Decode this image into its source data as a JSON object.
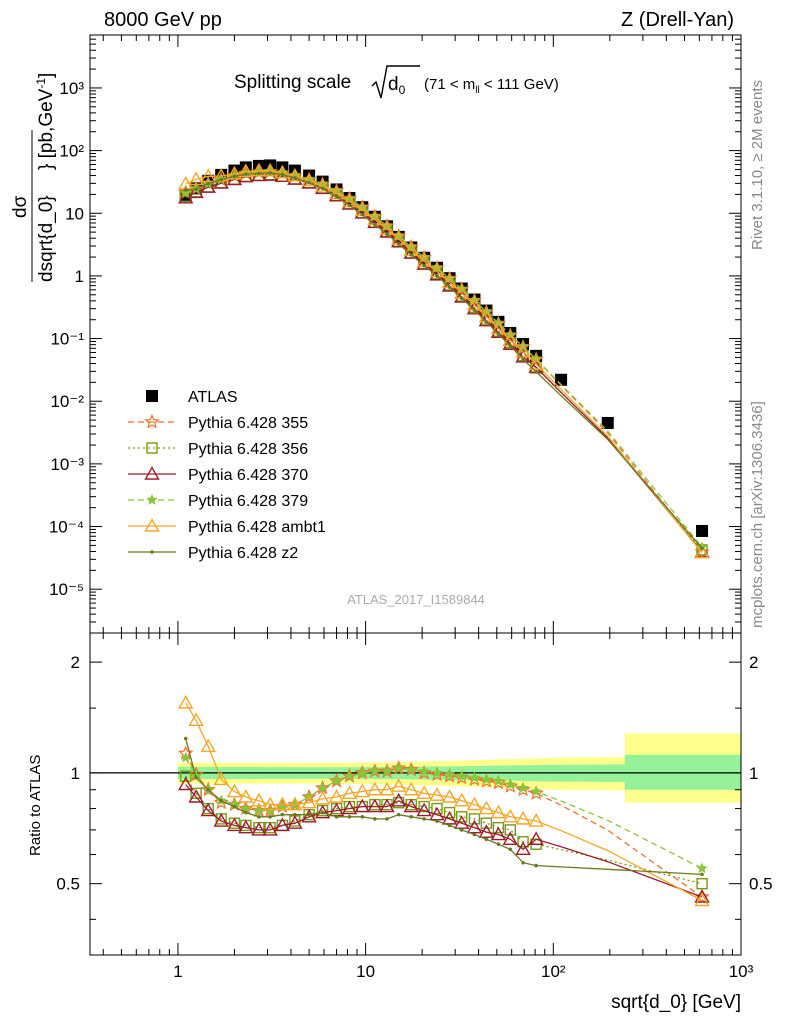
{
  "header": {
    "left": "8000 GeV pp",
    "right": "Z (Drell-Yan)"
  },
  "side_text": {
    "rivet": "Rivet 3.1.10, ≥ 2M events",
    "mcplots": "mcplots.cern.ch [arXiv:1306.3436]"
  },
  "chart_data": {
    "type": "scatter",
    "title": "Splitting scale √d₀ (71 < m_ll < 111 GeV)",
    "title_main": "Splitting scale",
    "title_sub": "(71 < m",
    "title_sub2": " < 111 GeV)",
    "analysis_label": "ATLAS_2017_I1589844",
    "xlabel": "sqrt{d_0} [GeV]",
    "ylabel": "dσ / dsqrt{d_0} [pb,GeV⁻¹]",
    "ratio_ylabel": "Ratio to ATLAS",
    "xscale": "log",
    "yscale": "log",
    "xlim": [
      0.34,
      1000
    ],
    "ylim": [
      2e-06,
      7000
    ],
    "ratio_ylim": [
      0.32,
      2.4
    ],
    "legend_position": "bottom-left",
    "x": [
      1.1,
      1.25,
      1.45,
      1.7,
      2.0,
      2.3,
      2.7,
      3.1,
      3.6,
      4.2,
      5.0,
      5.9,
      7.0,
      8.2,
      9.6,
      11.2,
      13.0,
      15.0,
      17.5,
      20.5,
      24.0,
      28.0,
      32.5,
      38.0,
      44.0,
      51.0,
      59.0,
      69.0,
      81.0,
      110.0,
      195.0,
      620.0
    ],
    "series": [
      {
        "name": "ATLAS",
        "color": "#000000",
        "marker": "filled-square",
        "line": "none",
        "values": [
          19,
          25,
          33,
          41,
          48,
          54,
          57,
          58,
          54,
          48,
          40,
          32,
          24,
          17.5,
          12.5,
          8.8,
          6.2,
          4.2,
          2.85,
          1.95,
          1.35,
          0.92,
          0.63,
          0.42,
          0.28,
          0.185,
          0.123,
          0.082,
          0.053,
          0.022,
          0.0045,
          8.5e-05
        ],
        "band_inner": {
          "x": [
            1.0,
            1.6,
            3.0,
            7.0,
            15.0,
            30.0,
            60.0,
            100.0,
            240.0,
            240.0,
            1000.0
          ],
          "lo": [
            0.962,
            0.962,
            0.963,
            0.964,
            0.962,
            0.957,
            0.952,
            0.947,
            0.945,
            0.9,
            0.9
          ],
          "hi": [
            1.038,
            1.038,
            1.037,
            1.036,
            1.038,
            1.043,
            1.048,
            1.053,
            1.055,
            1.12,
            1.12
          ]
        },
        "band_outer": {
          "x": [
            1.0,
            1.6,
            3.0,
            7.0,
            15.0,
            30.0,
            60.0,
            100.0,
            240.0,
            240.0,
            1000.0
          ],
          "lo": [
            0.935,
            0.935,
            0.935,
            0.935,
            0.93,
            0.92,
            0.91,
            0.9,
            0.895,
            0.83,
            0.83
          ],
          "hi": [
            1.065,
            1.065,
            1.065,
            1.065,
            1.07,
            1.08,
            1.09,
            1.1,
            1.105,
            1.28,
            1.28
          ]
        }
      },
      {
        "name": "Pythia 6.428 355",
        "color": "#f06f2a",
        "marker": "open-star",
        "line": "dashed",
        "ratio": [
          1.13,
          0.99,
          0.9,
          0.83,
          0.82,
          0.8,
          0.79,
          0.79,
          0.81,
          0.82,
          0.86,
          0.91,
          0.95,
          0.98,
          1.0,
          1.01,
          1.01,
          1.03,
          1.02,
          1.0,
          0.99,
          0.98,
          0.97,
          0.96,
          0.95,
          0.94,
          0.92,
          0.9,
          0.88,
          null,
          null,
          0.46
        ]
      },
      {
        "name": "Pythia 6.428 356",
        "color": "#7a9a10",
        "marker": "open-square",
        "line": "dotted",
        "ratio": [
          0.98,
          0.88,
          0.8,
          0.75,
          0.73,
          0.72,
          0.71,
          0.71,
          0.72,
          0.74,
          0.77,
          0.79,
          0.8,
          0.81,
          0.81,
          0.82,
          0.82,
          0.83,
          0.82,
          0.81,
          0.8,
          0.78,
          0.76,
          0.75,
          0.73,
          0.71,
          0.7,
          0.65,
          0.64,
          null,
          null,
          0.5
        ]
      },
      {
        "name": "Pythia 6.428 370",
        "color": "#9b1c2b",
        "marker": "open-triangle",
        "line": "solid",
        "ratio": [
          0.93,
          0.86,
          0.79,
          0.74,
          0.72,
          0.71,
          0.7,
          0.7,
          0.72,
          0.73,
          0.76,
          0.78,
          0.79,
          0.8,
          0.81,
          0.81,
          0.81,
          0.84,
          0.81,
          0.79,
          0.77,
          0.75,
          0.73,
          0.71,
          0.69,
          0.68,
          0.66,
          0.62,
          0.66,
          null,
          null,
          0.46
        ]
      },
      {
        "name": "Pythia 6.428 379",
        "color": "#8cc43c",
        "marker": "filled-star",
        "line": "dashed",
        "ratio": [
          1.1,
          0.98,
          0.9,
          0.84,
          0.82,
          0.8,
          0.79,
          0.79,
          0.81,
          0.82,
          0.86,
          0.91,
          0.95,
          0.98,
          1.0,
          1.01,
          1.01,
          1.03,
          1.02,
          1.01,
          1.0,
          0.99,
          0.98,
          0.97,
          0.96,
          0.95,
          0.93,
          0.91,
          0.89,
          null,
          null,
          0.55
        ]
      },
      {
        "name": "Pythia 6.428 ambt1",
        "color": "#f4a628",
        "marker": "open-triangle",
        "line": "solid",
        "ratio": [
          1.55,
          1.39,
          1.18,
          0.96,
          0.89,
          0.86,
          0.84,
          0.82,
          0.82,
          0.82,
          0.83,
          0.85,
          0.86,
          0.88,
          0.89,
          0.9,
          0.9,
          0.92,
          0.9,
          0.88,
          0.87,
          0.86,
          0.84,
          0.82,
          0.8,
          0.78,
          0.76,
          0.75,
          0.74,
          null,
          null,
          0.45
        ]
      },
      {
        "name": "Pythia 6.428 z2",
        "color": "#6b7a1e",
        "marker": "dot",
        "line": "solid",
        "ratio": [
          1.24,
          0.97,
          0.9,
          0.84,
          0.81,
          0.78,
          0.76,
          0.76,
          0.77,
          0.77,
          0.77,
          0.78,
          0.76,
          0.76,
          0.76,
          0.75,
          0.75,
          0.77,
          0.76,
          0.75,
          0.74,
          0.72,
          0.7,
          0.68,
          0.66,
          0.64,
          0.62,
          0.57,
          0.56,
          null,
          null,
          0.53
        ]
      }
    ],
    "main_y_ticks": [
      "10⁻⁵",
      "10⁻⁴",
      "10⁻³",
      "10⁻²",
      "10⁻¹",
      "1",
      "10",
      "10²",
      "10³"
    ],
    "ratio_y_ticks": [
      "0.5",
      "1",
      "2"
    ],
    "x_ticks": [
      "1",
      "10",
      "10²",
      "10³"
    ]
  }
}
